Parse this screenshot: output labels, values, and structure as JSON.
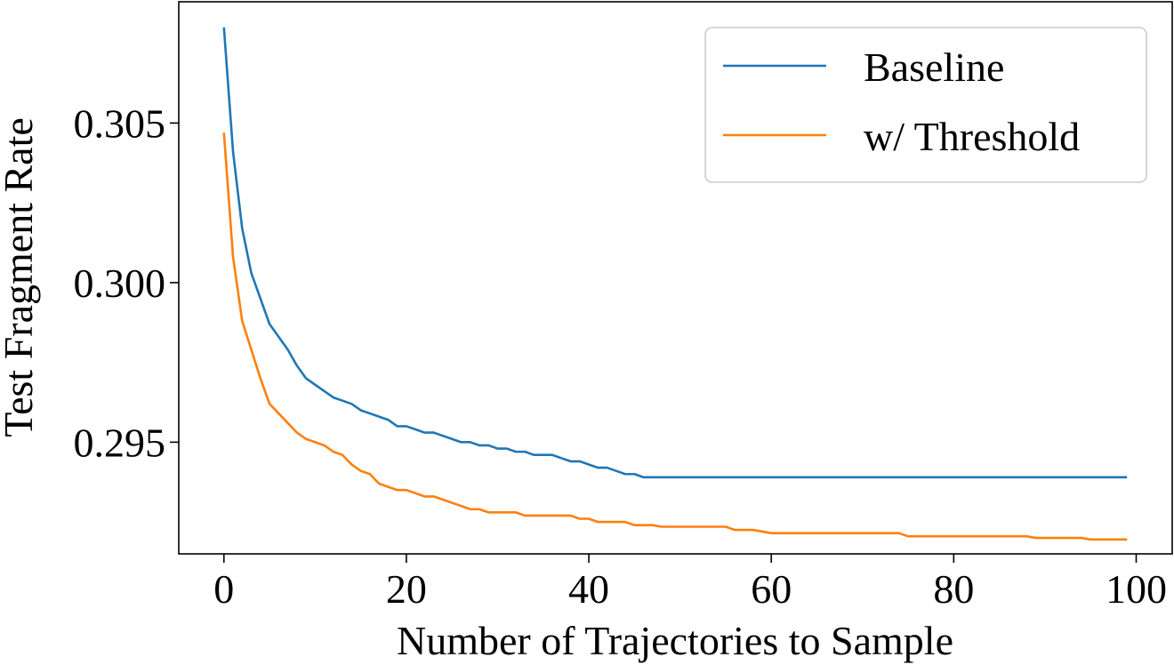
{
  "chart_data": {
    "type": "line",
    "title": "",
    "xlabel": "Number of Trajectories to Sample",
    "ylabel": "Test Fragment Rate",
    "xlim": [
      -4.95,
      103.95
    ],
    "ylim": [
      0.2915,
      0.3088
    ],
    "xticks": [
      0,
      20,
      40,
      60,
      80,
      100
    ],
    "xtick_labels": [
      "0",
      "20",
      "40",
      "60",
      "80",
      "100"
    ],
    "yticks": [
      0.295,
      0.3,
      0.305
    ],
    "ytick_labels": [
      "0.295",
      "0.300",
      "0.305"
    ],
    "grid": false,
    "legend_position": "top-right",
    "series": [
      {
        "name": "Baseline",
        "color": "#1f77b4",
        "points": [
          [
            0,
            0.308
          ],
          [
            1,
            0.3041
          ],
          [
            2,
            0.3017
          ],
          [
            3,
            0.3003
          ],
          [
            4,
            0.2995
          ],
          [
            5,
            0.2987
          ],
          [
            6,
            0.2983
          ],
          [
            7,
            0.2979
          ],
          [
            8,
            0.2974
          ],
          [
            9,
            0.297
          ],
          [
            10,
            0.2968
          ],
          [
            11,
            0.2966
          ],
          [
            12,
            0.2964
          ],
          [
            13,
            0.2963
          ],
          [
            14,
            0.2962
          ],
          [
            15,
            0.296
          ],
          [
            16,
            0.2959
          ],
          [
            17,
            0.2958
          ],
          [
            18,
            0.2957
          ],
          [
            19,
            0.2955
          ],
          [
            20,
            0.2955
          ],
          [
            21,
            0.2954
          ],
          [
            22,
            0.2953
          ],
          [
            23,
            0.2953
          ],
          [
            24,
            0.2952
          ],
          [
            25,
            0.2951
          ],
          [
            26,
            0.295
          ],
          [
            27,
            0.295
          ],
          [
            28,
            0.2949
          ],
          [
            29,
            0.2949
          ],
          [
            30,
            0.2948
          ],
          [
            31,
            0.2948
          ],
          [
            32,
            0.2947
          ],
          [
            33,
            0.2947
          ],
          [
            34,
            0.2946
          ],
          [
            35,
            0.2946
          ],
          [
            36,
            0.2946
          ],
          [
            37,
            0.2945
          ],
          [
            38,
            0.2944
          ],
          [
            39,
            0.2944
          ],
          [
            40,
            0.2943
          ],
          [
            41,
            0.2942
          ],
          [
            42,
            0.2942
          ],
          [
            43,
            0.2941
          ],
          [
            44,
            0.294
          ],
          [
            45,
            0.294
          ],
          [
            46,
            0.2939
          ],
          [
            47,
            0.2939
          ],
          [
            48,
            0.2939
          ],
          [
            60,
            0.2939
          ],
          [
            70,
            0.2939
          ],
          [
            80,
            0.2939
          ],
          [
            90,
            0.2939
          ],
          [
            99,
            0.2939
          ]
        ]
      },
      {
        "name": "w/ Threshold",
        "color": "#ff7f0e",
        "points": [
          [
            0,
            0.3047
          ],
          [
            1,
            0.3008
          ],
          [
            2,
            0.2988
          ],
          [
            3,
            0.2979
          ],
          [
            4,
            0.297
          ],
          [
            5,
            0.2962
          ],
          [
            6,
            0.2959
          ],
          [
            7,
            0.2956
          ],
          [
            8,
            0.2953
          ],
          [
            9,
            0.2951
          ],
          [
            10,
            0.295
          ],
          [
            11,
            0.2949
          ],
          [
            12,
            0.2947
          ],
          [
            13,
            0.2946
          ],
          [
            14,
            0.2943
          ],
          [
            15,
            0.2941
          ],
          [
            16,
            0.294
          ],
          [
            17,
            0.2937
          ],
          [
            18,
            0.2936
          ],
          [
            19,
            0.2935
          ],
          [
            20,
            0.2935
          ],
          [
            21,
            0.2934
          ],
          [
            22,
            0.2933
          ],
          [
            23,
            0.2933
          ],
          [
            24,
            0.2932
          ],
          [
            25,
            0.2931
          ],
          [
            26,
            0.293
          ],
          [
            27,
            0.2929
          ],
          [
            28,
            0.2929
          ],
          [
            29,
            0.2928
          ],
          [
            30,
            0.2928
          ],
          [
            31,
            0.2928
          ],
          [
            32,
            0.2928
          ],
          [
            33,
            0.2927
          ],
          [
            34,
            0.2927
          ],
          [
            35,
            0.2927
          ],
          [
            36,
            0.2927
          ],
          [
            37,
            0.2927
          ],
          [
            38,
            0.2927
          ],
          [
            39,
            0.2926
          ],
          [
            40,
            0.2926
          ],
          [
            41,
            0.2925
          ],
          [
            42,
            0.2925
          ],
          [
            43,
            0.2925
          ],
          [
            44,
            0.2925
          ],
          [
            45,
            0.2924
          ],
          [
            46,
            0.2924
          ],
          [
            47,
            0.2924
          ],
          [
            48,
            0.29235
          ],
          [
            55,
            0.29235
          ],
          [
            56,
            0.29225
          ],
          [
            58,
            0.29225
          ],
          [
            60,
            0.29215
          ],
          [
            74,
            0.29215
          ],
          [
            75,
            0.29205
          ],
          [
            88,
            0.29205
          ],
          [
            89,
            0.292
          ],
          [
            94,
            0.292
          ],
          [
            95,
            0.29195
          ],
          [
            99,
            0.29195
          ]
        ]
      }
    ]
  }
}
